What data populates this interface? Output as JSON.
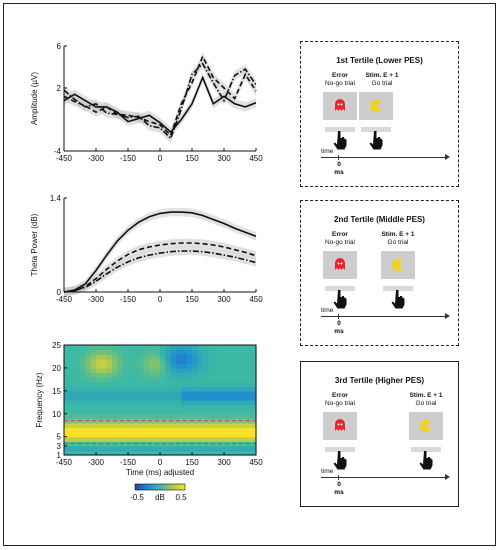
{
  "chart_data": [
    {
      "type": "line",
      "ylabel": "Amplitude (µV)",
      "xlim": [
        -450,
        450
      ],
      "ylim": [
        -4,
        6
      ],
      "yticks": [
        "6",
        "2",
        "-4"
      ],
      "yticks_values": [
        6,
        2,
        -4
      ],
      "xticks": [
        "-450",
        "-300",
        "-150",
        "0",
        "150",
        "300",
        "450"
      ],
      "x": [
        -450,
        -400,
        -350,
        -300,
        -250,
        -200,
        -150,
        -100,
        -50,
        0,
        50,
        100,
        150,
        200,
        250,
        300,
        350,
        400,
        450
      ],
      "series": [
        {
          "style": "solid",
          "values": [
            0.8,
            1.4,
            0.8,
            0.2,
            0.2,
            -0.3,
            -1.2,
            -0.9,
            -0.6,
            -1.3,
            -2.2,
            -1.0,
            0.5,
            3.0,
            0.5,
            1.2,
            0.5,
            0.2,
            0.6
          ]
        },
        {
          "style": "dashed",
          "values": [
            1.2,
            0.7,
            0.3,
            -0.3,
            0.2,
            -0.5,
            -0.6,
            -0.8,
            -1.2,
            -1.5,
            -2.5,
            0.5,
            2.5,
            5.0,
            3.0,
            2.0,
            1.0,
            3.3,
            1.7
          ]
        },
        {
          "style": "dashdot",
          "values": [
            1.8,
            0.9,
            0.2,
            0.5,
            -0.4,
            -0.5,
            -0.8,
            -0.7,
            -1.6,
            -1.8,
            -2.8,
            0.0,
            3.3,
            4.3,
            2.5,
            0.8,
            3.2,
            3.8,
            2.3
          ]
        }
      ]
    },
    {
      "type": "line",
      "ylabel": "Theta Power (dB)",
      "xlim": [
        -450,
        450
      ],
      "ylim": [
        0,
        1.4
      ],
      "yticks": [
        "1.4",
        "0"
      ],
      "yticks_values": [
        1.4,
        0
      ],
      "xticks": [
        "-450",
        "-300",
        "-150",
        "0",
        "150",
        "300",
        "450"
      ],
      "x": [
        -450,
        -400,
        -350,
        -300,
        -250,
        -200,
        -150,
        -100,
        -50,
        0,
        50,
        100,
        150,
        200,
        250,
        300,
        350,
        400,
        450
      ],
      "series": [
        {
          "style": "solid",
          "values": [
            0.0,
            0.03,
            0.12,
            0.32,
            0.55,
            0.76,
            0.92,
            1.04,
            1.12,
            1.17,
            1.19,
            1.19,
            1.18,
            1.14,
            1.08,
            1.02,
            0.95,
            0.89,
            0.83
          ]
        },
        {
          "style": "dashed",
          "values": [
            0.0,
            0.02,
            0.08,
            0.2,
            0.34,
            0.46,
            0.56,
            0.63,
            0.67,
            0.7,
            0.72,
            0.73,
            0.73,
            0.72,
            0.7,
            0.67,
            0.63,
            0.59,
            0.54
          ]
        },
        {
          "style": "dashdot",
          "values": [
            0.0,
            0.02,
            0.07,
            0.16,
            0.27,
            0.37,
            0.45,
            0.51,
            0.55,
            0.58,
            0.6,
            0.61,
            0.61,
            0.6,
            0.58,
            0.55,
            0.52,
            0.48,
            0.44
          ]
        }
      ]
    },
    {
      "type": "heatmap",
      "xlabel": "Time (ms) adjusted",
      "ylabel": "Frequency (Hz)",
      "xlim": [
        -450,
        450
      ],
      "ylim": [
        1,
        25
      ],
      "xticks": [
        "-450",
        "-300",
        "-150",
        "0",
        "150",
        "300",
        "450"
      ],
      "yticks": [
        "25",
        "20",
        "15",
        "10",
        "5",
        "3",
        "1"
      ],
      "yticks_values": [
        25,
        20,
        15,
        10,
        5,
        3,
        1
      ],
      "colorbar": {
        "ticks": [
          "-0.5",
          "dB",
          "0.5"
        ],
        "min": -0.5,
        "max": 0.5
      },
      "dashed_lines_hz": [
        3.5,
        8.5
      ],
      "line_color": "#c0399a"
    }
  ],
  "panels": [
    {
      "title": "1st Tertile (Lower PES)",
      "error_label": "Error",
      "error_sub": "No-go trial",
      "stim_label": "Stim. E + 1",
      "stim_sub": "Go trial",
      "time_label": "time",
      "zero": "0",
      "ms": "ms"
    },
    {
      "title": "2nd Tertile (Middle PES)",
      "error_label": "Error",
      "error_sub": "No-go trial",
      "stim_label": "Stim. E + 1",
      "stim_sub": "Go trial",
      "time_label": "time",
      "zero": "0",
      "ms": "ms"
    },
    {
      "title": "3rd Tertile (Higher PES)",
      "error_label": "Error",
      "error_sub": "No-go trial",
      "stim_label": "Stim. E + 1",
      "stim_sub": "Go trial",
      "time_label": "time",
      "zero": "0",
      "ms": "ms"
    }
  ],
  "colors": {
    "ghost": "#e8242a",
    "pacman": "#f2d21b",
    "screen": "#cdcdcd",
    "shade": "#c9c9c9"
  }
}
